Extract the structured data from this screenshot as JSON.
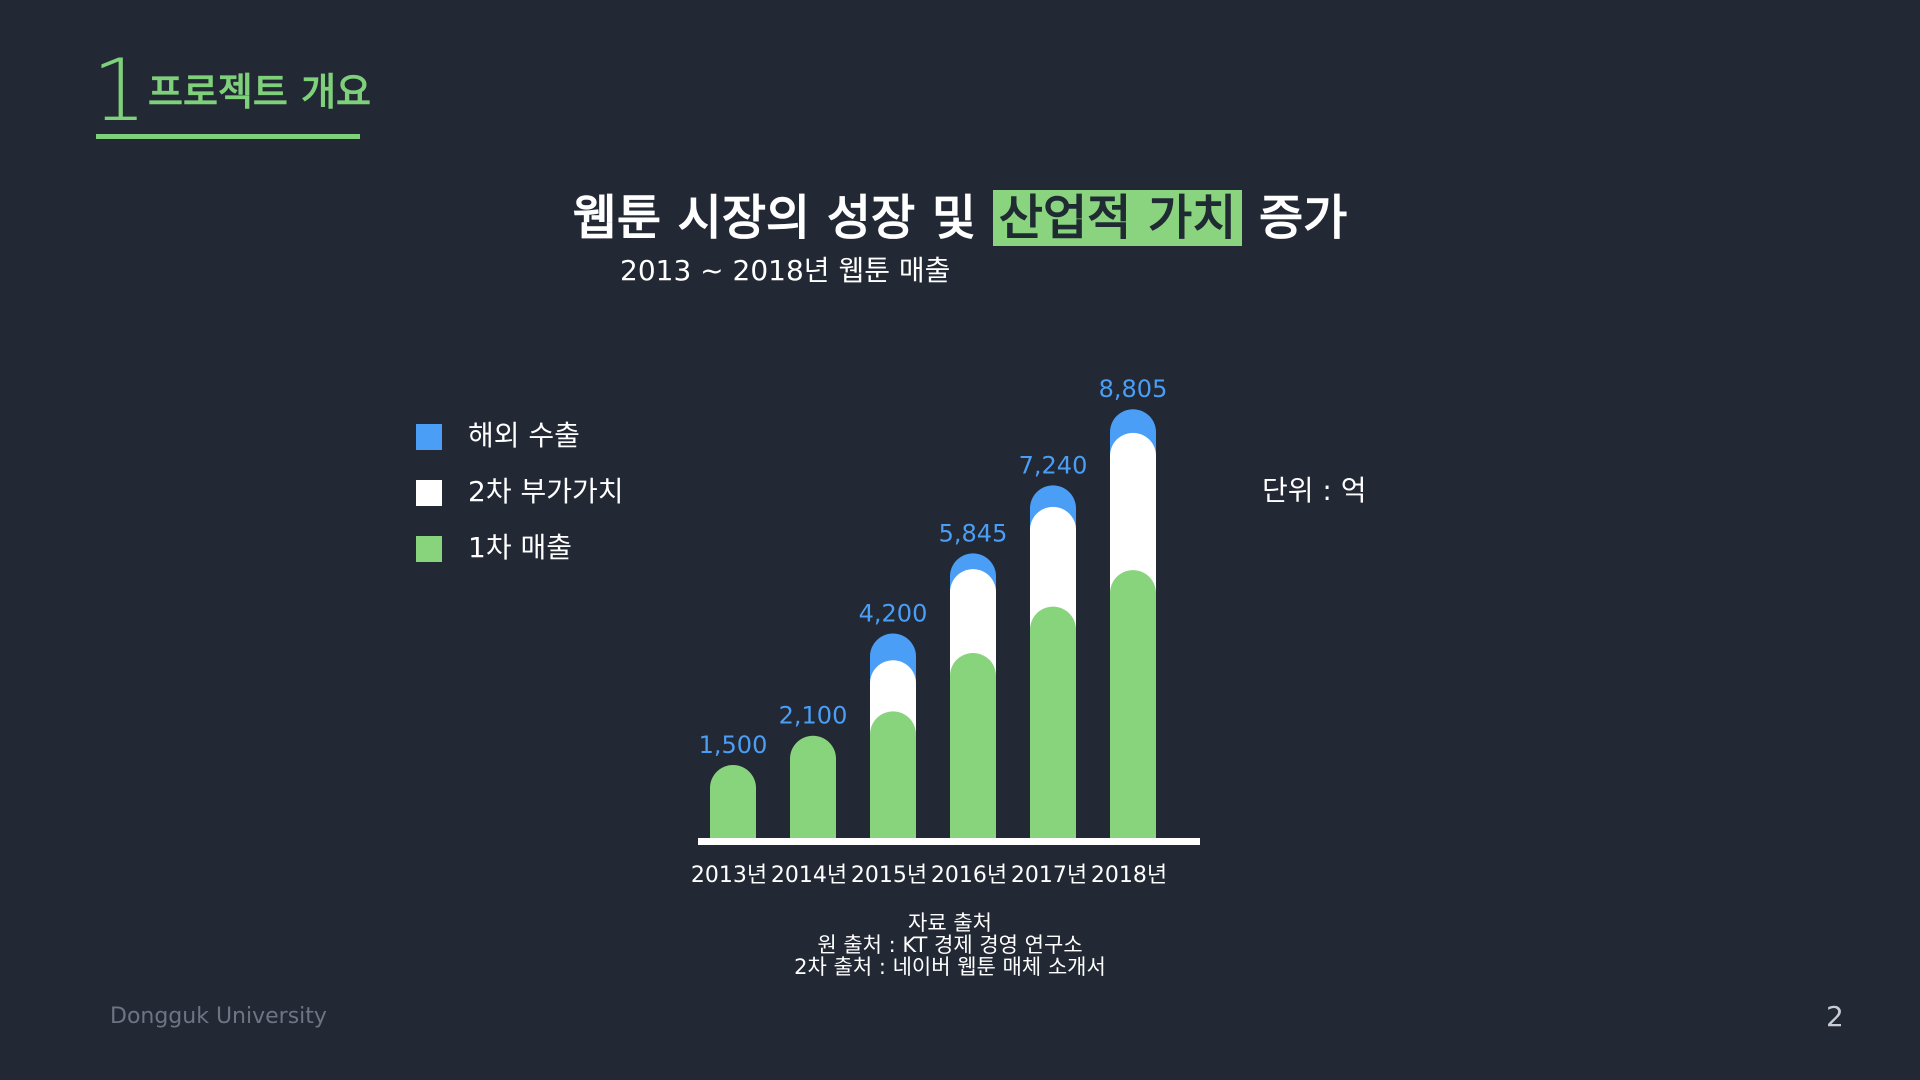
{
  "section": {
    "number": "1",
    "title": "프로젝트 개요"
  },
  "headline": {
    "before": "웹툰 시장의 성장 및 ",
    "highlight": "산업적 가치",
    "after": " 증가"
  },
  "subtitle": "2013 ~ 2018년 웹툰 매출",
  "unit_label": "단위 : 억",
  "source": {
    "heading": "자료 출처",
    "line1": "원 출처 : KT 경제 경영 연구소",
    "line2": "2차 출처 : 네이버 웹툰 매체 소개서"
  },
  "footer": {
    "organization": "Dongguk University",
    "page_number": "2"
  },
  "colors": {
    "background": "#222834",
    "accent_green": "#7fd07a",
    "highlight_green": "#8ad47f",
    "first_sales": "#88d47c",
    "secondary_value": "#ffffff",
    "overseas_export": "#4a9ef5",
    "total_label": "#4a9ef5"
  },
  "chart_data": {
    "type": "bar",
    "stacked": true,
    "title": "2013 ~ 2018년 웹툰 매출",
    "unit": "억",
    "categories": [
      "2013년",
      "2014년",
      "2015년",
      "2016년",
      "2017년",
      "2018년"
    ],
    "series": [
      {
        "name": "1차 매출",
        "color": "#88d47c",
        "values": [
          1500,
          2100,
          2600,
          3800,
          4750,
          5500
        ]
      },
      {
        "name": "2차 부가가치",
        "color": "#ffffff",
        "values": [
          0,
          0,
          1050,
          1720,
          2050,
          2820
        ]
      },
      {
        "name": "해외 수출",
        "color": "#4a9ef5",
        "values": [
          0,
          0,
          550,
          325,
          440,
          485
        ]
      }
    ],
    "totals": [
      1500,
      2100,
      4200,
      5845,
      7240,
      8805
    ],
    "total_labels": [
      "1,500",
      "2,100",
      "4,200",
      "5,845",
      "7,240",
      "8,805"
    ],
    "legend": [
      "해외 수출",
      "2차 부가가치",
      "1차 매출"
    ],
    "ylim": [
      0,
      9000
    ],
    "legend_position": "left",
    "grid": false
  }
}
